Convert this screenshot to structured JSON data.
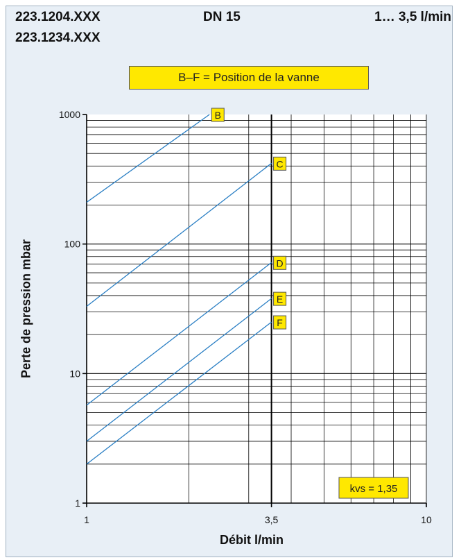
{
  "header": {
    "codes": [
      "223.1204.XXX",
      "223.1234.XXX"
    ],
    "dn": "DN 15",
    "flow_range": "1… 3,5 l/min"
  },
  "legend_note": "B–F = Position de la vanne",
  "kvs_label": "kvs = 1,35",
  "colors": {
    "panel": "#e8eff6",
    "label_fill": "#ffe800",
    "line": "#2a7fc4",
    "grid": "#000000"
  },
  "chart_data": {
    "type": "line",
    "x_scale": "log",
    "y_scale": "log",
    "xlim": [
      1,
      10
    ],
    "ylim": [
      1,
      1000
    ],
    "xlabel": "Débit l/min",
    "ylabel": "Perte de pression mbar",
    "x_ticks": [
      {
        "value": 1,
        "label": "1"
      },
      {
        "value": 3.5,
        "label": "3,5"
      },
      {
        "value": 10,
        "label": "10"
      }
    ],
    "y_ticks": [
      {
        "value": 1,
        "label": "1"
      },
      {
        "value": 10,
        "label": "10"
      },
      {
        "value": 100,
        "label": "100"
      },
      {
        "value": 1000,
        "label": "1000"
      }
    ],
    "highlight_x": 3.5,
    "grid": true,
    "series": [
      {
        "name": "B",
        "x": [
          1,
          2.3
        ],
        "y": [
          210,
          1000
        ]
      },
      {
        "name": "C",
        "x": [
          1,
          3.5
        ],
        "y": [
          33,
          420
        ]
      },
      {
        "name": "D",
        "x": [
          1,
          3.5
        ],
        "y": [
          5.7,
          72
        ]
      },
      {
        "name": "E",
        "x": [
          1,
          3.5
        ],
        "y": [
          3,
          38
        ]
      },
      {
        "name": "F",
        "x": [
          1,
          3.5
        ],
        "y": [
          2,
          25
        ]
      }
    ]
  }
}
